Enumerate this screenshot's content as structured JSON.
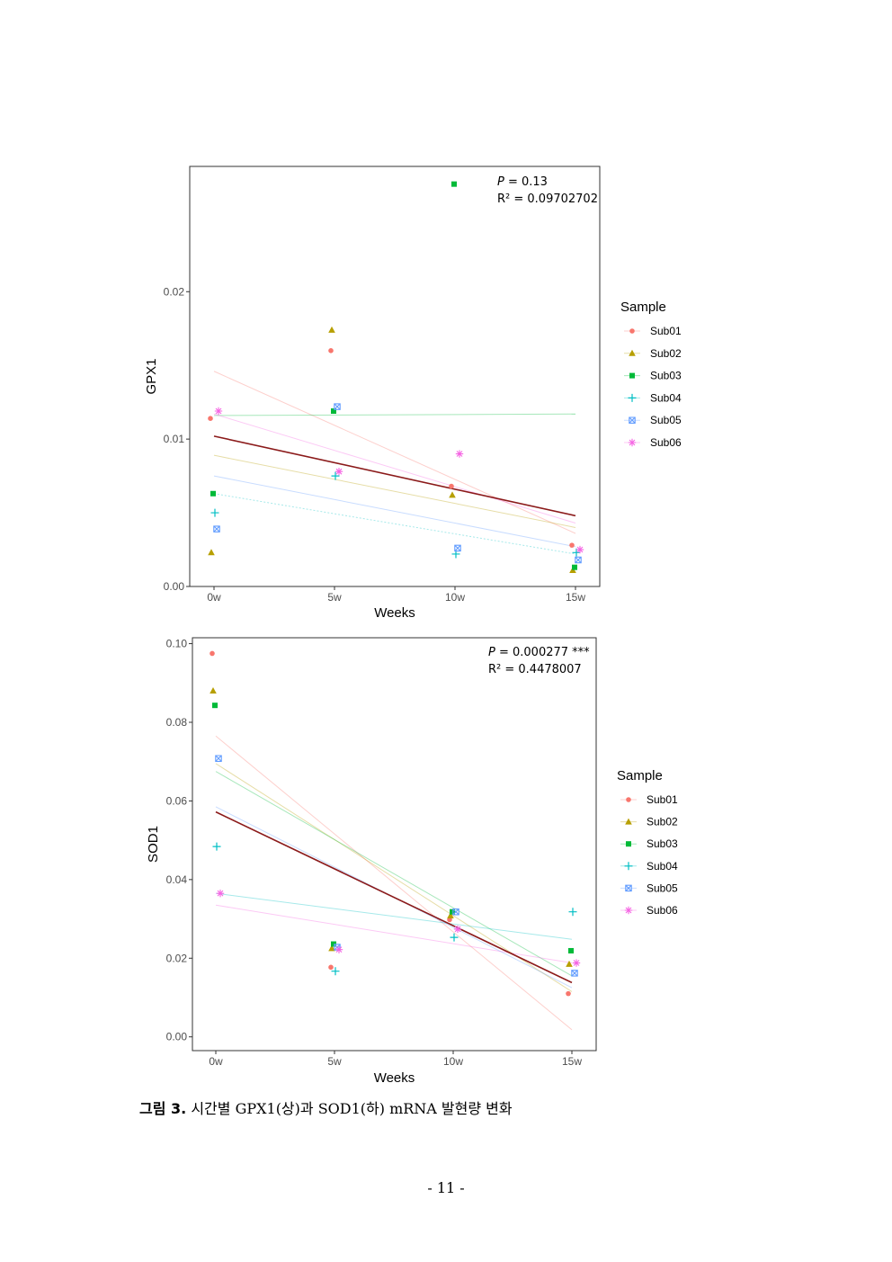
{
  "chart_data": [
    {
      "type": "scatter",
      "title": "",
      "xlabel": "Weeks",
      "ylabel": "GPX1",
      "categories": [
        "0w",
        "5w",
        "10w",
        "15w"
      ],
      "x_values": [
        0,
        5,
        10,
        15
      ],
      "ylim": [
        0,
        0.0285
      ],
      "yticks": [
        0.0,
        0.01,
        0.02
      ],
      "ytick_labels": [
        "0.00",
        "0.01",
        "0.02"
      ],
      "grid": false,
      "legend": {
        "title": "Sample",
        "position": "right"
      },
      "stats": {
        "p_label": "P",
        "p_value": "= 0.13",
        "r2_label": "R² = 0.09702702"
      },
      "series": [
        {
          "name": "Sub01",
          "color": "#F8766D",
          "marker": "circle",
          "values": [
            0.0114,
            0.016,
            0.0068,
            0.0028
          ]
        },
        {
          "name": "Sub02",
          "color": "#B79F00",
          "marker": "triangle",
          "values": [
            0.0023,
            0.0174,
            0.0062,
            0.0011
          ]
        },
        {
          "name": "Sub03",
          "color": "#00BA38",
          "marker": "square",
          "values": [
            0.0063,
            0.0119,
            0.0273,
            0.0013
          ]
        },
        {
          "name": "Sub04",
          "color": "#00BFC4",
          "marker": "plus",
          "values": [
            0.005,
            0.0075,
            0.0022,
            0.0023
          ]
        },
        {
          "name": "Sub05",
          "color": "#619CFF",
          "marker": "boxx",
          "values": [
            0.0039,
            0.0122,
            0.0026,
            0.0018
          ]
        },
        {
          "name": "Sub06",
          "color": "#F564E3",
          "marker": "asterisk",
          "values": [
            0.0119,
            0.0078,
            0.009,
            0.0025
          ]
        }
      ],
      "series_fits": [
        {
          "name": "Sub01",
          "start": 0.0146,
          "end": 0.0036
        },
        {
          "name": "Sub02",
          "start": 0.0089,
          "end": 0.004
        },
        {
          "name": "Sub03",
          "start": 0.0116,
          "end": 0.0117
        },
        {
          "name": "Sub04",
          "start": 0.0063,
          "end": 0.0022
        },
        {
          "name": "Sub05",
          "start": 0.0075,
          "end": 0.0027
        },
        {
          "name": "Sub06",
          "start": 0.0117,
          "end": 0.0043
        }
      ],
      "overall_fit": {
        "start": 0.0102,
        "end": 0.0048,
        "color": "#8B1A1A"
      }
    },
    {
      "type": "scatter",
      "title": "",
      "xlabel": "Weeks",
      "ylabel": "SOD1",
      "categories": [
        "0w",
        "5w",
        "10w",
        "15w"
      ],
      "x_values": [
        0,
        5,
        10,
        15
      ],
      "ylim": [
        -0.0035,
        0.1015
      ],
      "yticks": [
        0.0,
        0.02,
        0.04,
        0.06,
        0.08,
        0.1
      ],
      "ytick_labels": [
        "0.00",
        "0.02",
        "0.04",
        "0.06",
        "0.08",
        "0.10"
      ],
      "grid": false,
      "legend": {
        "title": "Sample",
        "position": "right"
      },
      "stats": {
        "p_label": "P",
        "p_value": "= 0.000277 ***",
        "r2_label": "R² = 0.4478007"
      },
      "series": [
        {
          "name": "Sub01",
          "color": "#F8766D",
          "marker": "circle",
          "values": [
            0.0975,
            0.0177,
            0.0298,
            0.011
          ]
        },
        {
          "name": "Sub02",
          "color": "#B79F00",
          "marker": "triangle",
          "values": [
            0.088,
            0.0225,
            0.0308,
            0.0185
          ]
        },
        {
          "name": "Sub03",
          "color": "#00BA38",
          "marker": "square",
          "values": [
            0.0843,
            0.0236,
            0.0318,
            0.0219
          ]
        },
        {
          "name": "Sub04",
          "color": "#00BFC4",
          "marker": "plus",
          "values": [
            0.0484,
            0.0167,
            0.0253,
            0.0318
          ]
        },
        {
          "name": "Sub05",
          "color": "#619CFF",
          "marker": "boxx",
          "values": [
            0.0708,
            0.0228,
            0.0318,
            0.0162
          ]
        },
        {
          "name": "Sub06",
          "color": "#F564E3",
          "marker": "asterisk",
          "values": [
            0.0365,
            0.0222,
            0.0274,
            0.0188
          ]
        }
      ],
      "series_fits": [
        {
          "name": "Sub01",
          "start": 0.0765,
          "end": 0.0018
        },
        {
          "name": "Sub02",
          "start": 0.0695,
          "end": 0.0115
        },
        {
          "name": "Sub03",
          "start": 0.0675,
          "end": 0.0155
        },
        {
          "name": "Sub04",
          "start": 0.0365,
          "end": 0.0248
        },
        {
          "name": "Sub05",
          "start": 0.0585,
          "end": 0.0125
        },
        {
          "name": "Sub06",
          "start": 0.0335,
          "end": 0.0188
        }
      ],
      "overall_fit": {
        "start": 0.0572,
        "end": 0.0138,
        "color": "#8B1A1A"
      }
    }
  ],
  "caption": {
    "label": "그림 3.",
    "text": "시간별 GPX1(상)과 SOD1(하) mRNA 발현량 변화"
  },
  "page_number": "- 11 -"
}
